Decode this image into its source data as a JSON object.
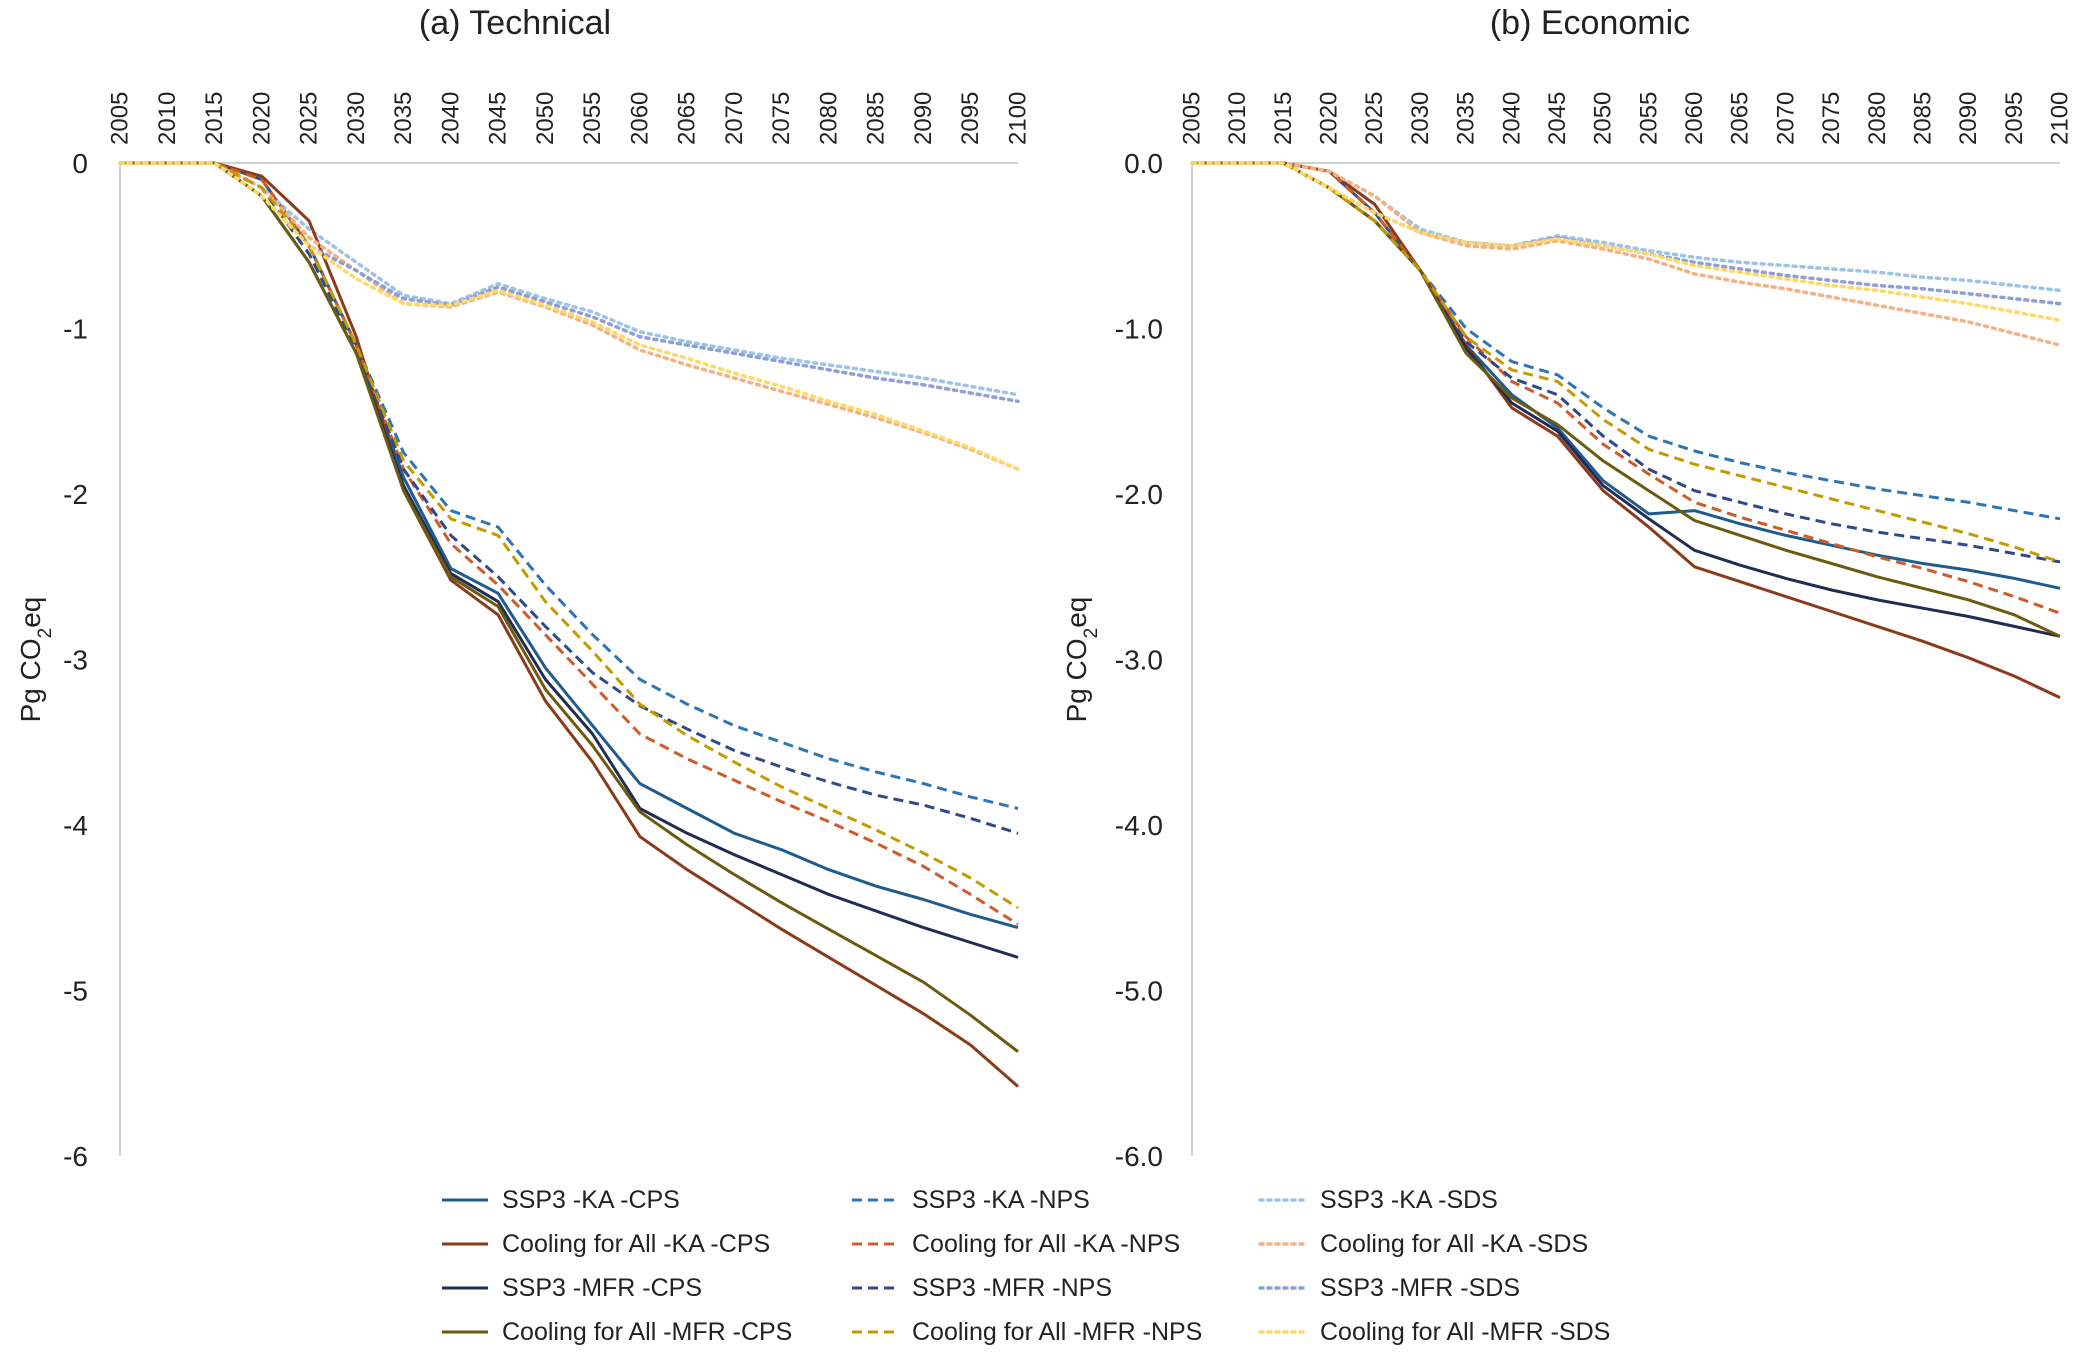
{
  "chart_data": [
    {
      "type": "line",
      "title": "(a) Technical",
      "ylabel": "Pg CO2eq",
      "ylabel_main": "Pg CO",
      "ylabel_sub": "2",
      "ylabel_tail": "eq",
      "x": [
        2005,
        2010,
        2015,
        2020,
        2025,
        2030,
        2035,
        2040,
        2045,
        2050,
        2055,
        2060,
        2065,
        2070,
        2075,
        2080,
        2085,
        2090,
        2095,
        2100
      ],
      "ylim": [
        -6,
        0
      ],
      "yticks": [
        0,
        -1,
        -2,
        -3,
        -4,
        -5,
        -6
      ],
      "ytick_labels": [
        "0",
        "-1",
        "-2",
        "-3",
        "-4",
        "-5",
        "-6"
      ],
      "x_axis_position": "top",
      "grid": false,
      "series": [
        {
          "name": "SSP3 -KA -CPS",
          "values": [
            0,
            0,
            0,
            -0.1,
            -0.5,
            -1.1,
            -1.9,
            -2.45,
            -2.6,
            -3.05,
            -3.4,
            -3.75,
            -3.9,
            -4.05,
            -4.15,
            -4.27,
            -4.37,
            -4.45,
            -4.54,
            -4.62
          ]
        },
        {
          "name": "SSP3 -KA -NPS",
          "values": [
            0,
            0,
            0,
            -0.1,
            -0.5,
            -1.1,
            -1.75,
            -2.1,
            -2.2,
            -2.55,
            -2.85,
            -3.12,
            -3.27,
            -3.4,
            -3.5,
            -3.6,
            -3.68,
            -3.75,
            -3.83,
            -3.9
          ]
        },
        {
          "name": "SSP3 -KA -SDS",
          "values": [
            0,
            0,
            0,
            -0.15,
            -0.4,
            -0.6,
            -0.8,
            -0.85,
            -0.73,
            -0.82,
            -0.9,
            -1.02,
            -1.08,
            -1.13,
            -1.18,
            -1.22,
            -1.26,
            -1.3,
            -1.35,
            -1.4
          ]
        },
        {
          "name": "Cooling for All -KA -CPS",
          "values": [
            0,
            0,
            0,
            -0.08,
            -0.35,
            -1.05,
            -1.98,
            -2.52,
            -2.73,
            -3.25,
            -3.62,
            -4.07,
            -4.27,
            -4.45,
            -4.63,
            -4.8,
            -4.97,
            -5.14,
            -5.33,
            -5.58
          ]
        },
        {
          "name": "Cooling for All -KA -NPS",
          "values": [
            0,
            0,
            0,
            -0.1,
            -0.5,
            -1.1,
            -1.85,
            -2.3,
            -2.55,
            -2.85,
            -3.15,
            -3.45,
            -3.6,
            -3.73,
            -3.86,
            -3.98,
            -4.11,
            -4.25,
            -4.42,
            -4.6
          ]
        },
        {
          "name": "Cooling for All -KA -SDS",
          "values": [
            0,
            0,
            0,
            -0.15,
            -0.45,
            -0.65,
            -0.85,
            -0.87,
            -0.78,
            -0.87,
            -0.98,
            -1.13,
            -1.22,
            -1.3,
            -1.38,
            -1.46,
            -1.54,
            -1.63,
            -1.73,
            -1.85
          ]
        },
        {
          "name": "SSP3 -MFR -CPS",
          "values": [
            0,
            0,
            0,
            -0.2,
            -0.6,
            -1.15,
            -1.95,
            -2.48,
            -2.65,
            -3.12,
            -3.45,
            -3.9,
            -4.05,
            -4.18,
            -4.3,
            -4.42,
            -4.52,
            -4.62,
            -4.71,
            -4.8
          ]
        },
        {
          "name": "SSP3 -MFR -NPS",
          "values": [
            0,
            0,
            0,
            -0.15,
            -0.55,
            -1.12,
            -1.85,
            -2.25,
            -2.5,
            -2.8,
            -3.08,
            -3.28,
            -3.42,
            -3.55,
            -3.65,
            -3.74,
            -3.82,
            -3.88,
            -3.96,
            -4.05
          ]
        },
        {
          "name": "SSP3 -MFR -SDS",
          "values": [
            0,
            0,
            0,
            -0.2,
            -0.5,
            -0.65,
            -0.82,
            -0.86,
            -0.75,
            -0.84,
            -0.93,
            -1.05,
            -1.1,
            -1.15,
            -1.2,
            -1.25,
            -1.3,
            -1.34,
            -1.39,
            -1.44
          ]
        },
        {
          "name": "Cooling for All -MFR -CPS",
          "values": [
            0,
            0,
            0,
            -0.2,
            -0.6,
            -1.15,
            -1.98,
            -2.5,
            -2.68,
            -3.18,
            -3.52,
            -3.92,
            -4.12,
            -4.3,
            -4.47,
            -4.63,
            -4.79,
            -4.95,
            -5.15,
            -5.37
          ]
        },
        {
          "name": "Cooling for All -MFR -NPS",
          "values": [
            0,
            0,
            0,
            -0.15,
            -0.5,
            -1.1,
            -1.8,
            -2.15,
            -2.25,
            -2.65,
            -2.95,
            -3.27,
            -3.46,
            -3.62,
            -3.77,
            -3.9,
            -4.03,
            -4.17,
            -4.32,
            -4.5
          ]
        },
        {
          "name": "Cooling for All -MFR -SDS",
          "values": [
            0,
            0,
            0,
            -0.2,
            -0.5,
            -0.7,
            -0.85,
            -0.86,
            -0.77,
            -0.86,
            -0.96,
            -1.1,
            -1.18,
            -1.27,
            -1.35,
            -1.44,
            -1.52,
            -1.62,
            -1.72,
            -1.85
          ]
        }
      ]
    },
    {
      "type": "line",
      "title": "(b) Economic",
      "ylabel": "Pg CO2eq",
      "ylabel_main": "Pg CO",
      "ylabel_sub": "2",
      "ylabel_tail": "eq",
      "x": [
        2005,
        2010,
        2015,
        2020,
        2025,
        2030,
        2035,
        2040,
        2045,
        2050,
        2055,
        2060,
        2065,
        2070,
        2075,
        2080,
        2085,
        2090,
        2095,
        2100
      ],
      "ylim": [
        -6,
        0
      ],
      "yticks": [
        0,
        -1,
        -2,
        -3,
        -4,
        -5,
        -6
      ],
      "ytick_labels": [
        "0.0",
        "-1.0",
        "-2.0",
        "-3.0",
        "-4.0",
        "-5.0",
        "-6.0"
      ],
      "x_axis_position": "top",
      "grid": false,
      "series": [
        {
          "name": "SSP3 -KA -CPS",
          "values": [
            0,
            0,
            0,
            -0.05,
            -0.3,
            -0.65,
            -1.1,
            -1.4,
            -1.6,
            -1.92,
            -2.12,
            -2.1,
            -2.18,
            -2.25,
            -2.31,
            -2.37,
            -2.42,
            -2.46,
            -2.51,
            -2.57
          ]
        },
        {
          "name": "SSP3 -KA -NPS",
          "values": [
            0,
            0,
            0,
            -0.05,
            -0.3,
            -0.65,
            -1.0,
            -1.2,
            -1.28,
            -1.48,
            -1.65,
            -1.74,
            -1.81,
            -1.87,
            -1.92,
            -1.97,
            -2.01,
            -2.05,
            -2.1,
            -2.15
          ]
        },
        {
          "name": "SSP3 -KA -SDS",
          "values": [
            0,
            0,
            0,
            -0.05,
            -0.2,
            -0.4,
            -0.48,
            -0.5,
            -0.44,
            -0.48,
            -0.53,
            -0.57,
            -0.6,
            -0.62,
            -0.64,
            -0.66,
            -0.69,
            -0.71,
            -0.74,
            -0.77
          ]
        },
        {
          "name": "Cooling for All -KA -CPS",
          "values": [
            0,
            0,
            0,
            -0.05,
            -0.25,
            -0.65,
            -1.1,
            -1.48,
            -1.65,
            -1.98,
            -2.2,
            -2.44,
            -2.53,
            -2.62,
            -2.71,
            -2.8,
            -2.89,
            -2.99,
            -3.1,
            -3.23
          ]
        },
        {
          "name": "Cooling for All -KA -NPS",
          "values": [
            0,
            0,
            0,
            -0.05,
            -0.3,
            -0.65,
            -1.05,
            -1.32,
            -1.45,
            -1.7,
            -1.88,
            -2.05,
            -2.14,
            -2.22,
            -2.3,
            -2.38,
            -2.45,
            -2.53,
            -2.62,
            -2.72
          ]
        },
        {
          "name": "Cooling for All -KA -SDS",
          "values": [
            0,
            0,
            0,
            -0.05,
            -0.2,
            -0.42,
            -0.5,
            -0.52,
            -0.47,
            -0.52,
            -0.58,
            -0.67,
            -0.72,
            -0.76,
            -0.81,
            -0.86,
            -0.91,
            -0.96,
            -1.03,
            -1.1
          ]
        },
        {
          "name": "SSP3 -MFR -CPS",
          "values": [
            0,
            0,
            0,
            -0.15,
            -0.35,
            -0.65,
            -1.12,
            -1.45,
            -1.62,
            -1.95,
            -2.15,
            -2.34,
            -2.43,
            -2.51,
            -2.58,
            -2.64,
            -2.69,
            -2.74,
            -2.8,
            -2.86
          ]
        },
        {
          "name": "SSP3 -MFR -NPS",
          "values": [
            0,
            0,
            0,
            -0.15,
            -0.35,
            -0.65,
            -1.08,
            -1.3,
            -1.4,
            -1.65,
            -1.85,
            -1.98,
            -2.05,
            -2.12,
            -2.18,
            -2.23,
            -2.27,
            -2.31,
            -2.36,
            -2.41
          ]
        },
        {
          "name": "SSP3 -MFR -SDS",
          "values": [
            0,
            0,
            0,
            -0.15,
            -0.3,
            -0.42,
            -0.48,
            -0.5,
            -0.45,
            -0.5,
            -0.55,
            -0.6,
            -0.64,
            -0.68,
            -0.71,
            -0.74,
            -0.76,
            -0.79,
            -0.82,
            -0.85
          ]
        },
        {
          "name": "Cooling for All -MFR -CPS",
          "values": [
            0,
            0,
            0,
            -0.15,
            -0.35,
            -0.65,
            -1.15,
            -1.42,
            -1.58,
            -1.8,
            -1.98,
            -2.16,
            -2.25,
            -2.34,
            -2.42,
            -2.5,
            -2.57,
            -2.64,
            -2.73,
            -2.86
          ]
        },
        {
          "name": "Cooling for All -MFR -NPS",
          "values": [
            0,
            0,
            0,
            -0.15,
            -0.35,
            -0.65,
            -1.05,
            -1.25,
            -1.32,
            -1.55,
            -1.73,
            -1.82,
            -1.89,
            -1.96,
            -2.03,
            -2.1,
            -2.17,
            -2.24,
            -2.32,
            -2.41
          ]
        },
        {
          "name": "Cooling for All -MFR -SDS",
          "values": [
            0,
            0,
            0,
            -0.15,
            -0.3,
            -0.42,
            -0.48,
            -0.5,
            -0.46,
            -0.5,
            -0.55,
            -0.62,
            -0.66,
            -0.7,
            -0.74,
            -0.77,
            -0.81,
            -0.85,
            -0.9,
            -0.95
          ]
        }
      ]
    }
  ],
  "legend": {
    "placement": "bottom",
    "items": [
      {
        "label": "SSP3 -KA -CPS",
        "color": "#1f5b8c",
        "style": "solid"
      },
      {
        "label": "SSP3 -KA -NPS",
        "color": "#2e75b6",
        "style": "dashed"
      },
      {
        "label": "SSP3 -KA -SDS",
        "color": "#9dc3e6",
        "style": "dotted"
      },
      {
        "label": "Cooling for All -KA -CPS",
        "color": "#8b3a1a",
        "style": "solid"
      },
      {
        "label": "Cooling for All -KA -NPS",
        "color": "#d05a2a",
        "style": "dashed"
      },
      {
        "label": "Cooling for All -KA -SDS",
        "color": "#f4b183",
        "style": "dotted"
      },
      {
        "label": "SSP3 -MFR -CPS",
        "color": "#1f2d55",
        "style": "solid"
      },
      {
        "label": "SSP3 -MFR -NPS",
        "color": "#2f4a8a",
        "style": "dashed"
      },
      {
        "label": "SSP3 -MFR -SDS",
        "color": "#8f9fd6",
        "style": "dotted"
      },
      {
        "label": "Cooling for All -MFR -CPS",
        "color": "#6b5a10",
        "style": "solid"
      },
      {
        "label": "Cooling for All -MFR -NPS",
        "color": "#c49a00",
        "style": "dashed"
      },
      {
        "label": "Cooling for All -MFR -SDS",
        "color": "#ffd966",
        "style": "dotted"
      }
    ]
  }
}
